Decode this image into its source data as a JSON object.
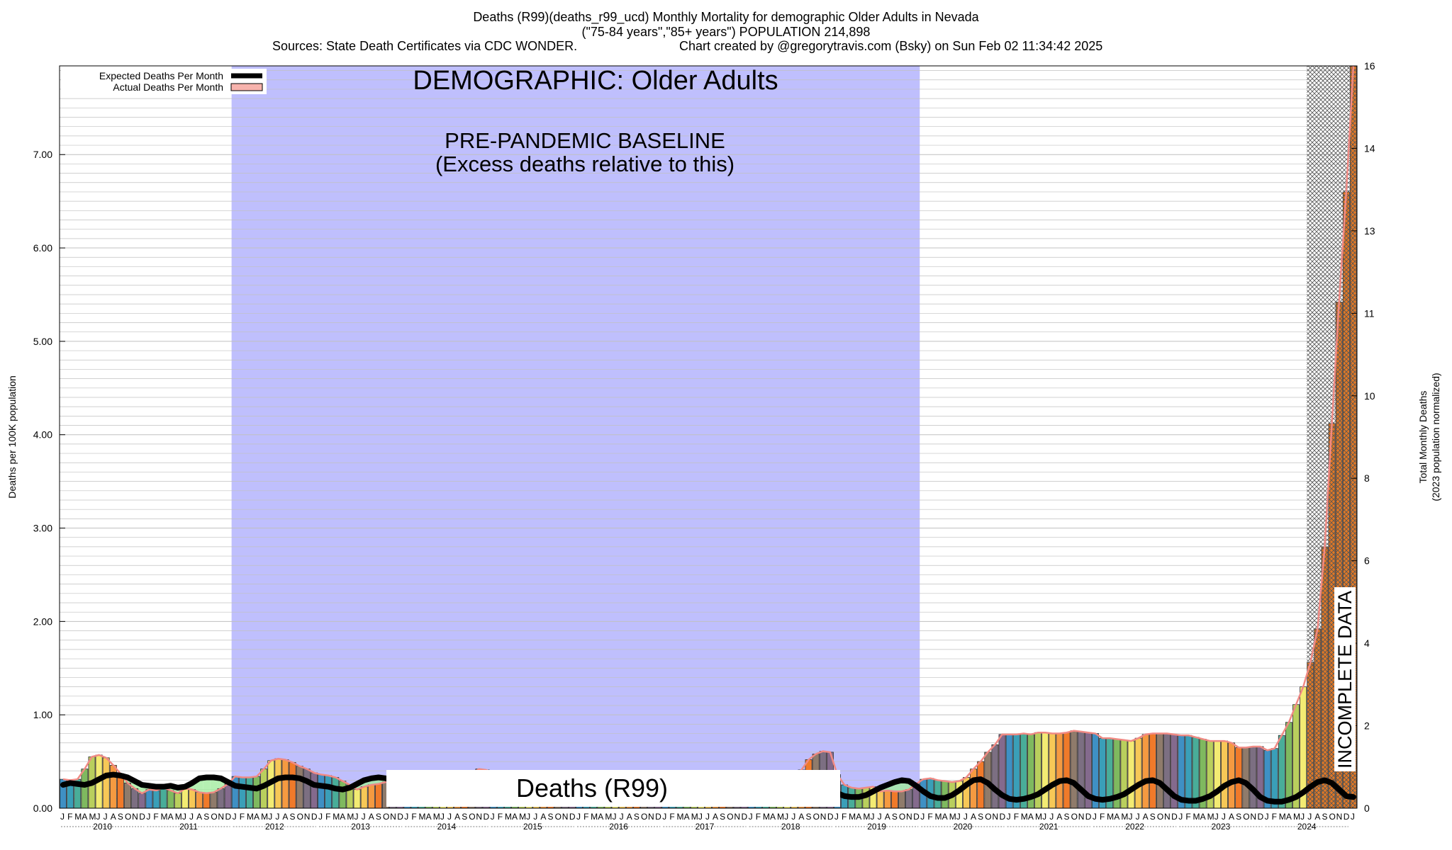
{
  "header": {
    "title_line1": "Deaths (R99)(deaths_r99_ucd) Monthly Mortality for demographic Older Adults in Nevada",
    "title_line2": "(\"75-84 years\",\"85+ years\") POPULATION 214,898",
    "sources": "Sources: State Death Certificates via CDC WONDER.",
    "credit": "Chart created by @gregorytravis.com (Bsky) on Sun Feb 02 11:34:42 2025"
  },
  "annotations": {
    "demographic": "DEMOGRAPHIC: Older Adults",
    "baseline_line1": "PRE-PANDEMIC BASELINE",
    "baseline_line2": "(Excess deaths relative to this)",
    "cause_box": "Deaths (R99)",
    "incomplete": "INCOMPLETE DATA"
  },
  "legend": {
    "expected": "Expected Deaths Per Month",
    "actual": "Actual Deaths Per Month"
  },
  "colors": {
    "baseline_band": "#bfbffd",
    "expected_line": "#000000",
    "actual_fill": "#f7b3ad",
    "grid": "#c0c0c0",
    "excess_fill": "#a3ec9f"
  },
  "chart_data": {
    "type": "bar",
    "ylabel": "Deaths per 100K population",
    "ylabel_right_line1": "Total Monthly Deaths",
    "ylabel_right_line2": "(2023 population normalized)",
    "ylim": [
      0,
      7.95
    ],
    "ylim_right": [
      0,
      16
    ],
    "y_ticks": [
      "0.00",
      "1.00",
      "2.00",
      "3.00",
      "4.00",
      "5.00",
      "6.00",
      "7.00"
    ],
    "y_ticks_right": [
      "0",
      "2",
      "4",
      "6",
      "8",
      "10",
      "11",
      "13",
      "14",
      "16"
    ],
    "years": [
      "2010",
      "2011",
      "2012",
      "2013",
      "2014",
      "2015",
      "2016",
      "2017",
      "2018",
      "2019",
      "2020",
      "2021",
      "2022",
      "2023",
      "2024"
    ],
    "month_letters": [
      "J",
      "F",
      "M",
      "A",
      "M",
      "J",
      "J",
      "A",
      "S",
      "O",
      "N",
      "D"
    ],
    "baseline_period": [
      "2012-01",
      "2019-12"
    ],
    "incomplete_from": "2024-07",
    "actual": [
      0.31,
      0.3,
      0.31,
      0.42,
      0.55,
      0.57,
      0.54,
      0.46,
      0.37,
      0.27,
      0.21,
      0.16,
      0.2,
      0.19,
      0.22,
      0.19,
      0.16,
      0.21,
      0.2,
      0.17,
      0.16,
      0.17,
      0.21,
      0.26,
      0.34,
      0.33,
      0.33,
      0.34,
      0.42,
      0.51,
      0.53,
      0.52,
      0.49,
      0.45,
      0.42,
      0.38,
      0.36,
      0.35,
      0.33,
      0.29,
      0.25,
      0.2,
      0.23,
      0.25,
      0.26,
      0.28,
      0.3,
      0.34,
      0.38,
      0.36,
      0.35,
      0.32,
      0.28,
      0.26,
      0.24,
      0.26,
      0.3,
      0.37,
      0.42,
      0.41,
      0.38,
      0.36,
      0.33,
      0.3,
      0.27,
      0.24,
      0.23,
      0.25,
      0.29,
      0.33,
      0.36,
      0.37,
      0.36,
      0.33,
      0.31,
      0.28,
      0.26,
      0.24,
      0.23,
      0.25,
      0.28,
      0.31,
      0.33,
      0.34,
      0.33,
      0.31,
      0.29,
      0.27,
      0.25,
      0.23,
      0.22,
      0.24,
      0.27,
      0.3,
      0.33,
      0.34,
      0.33,
      0.31,
      0.29,
      0.27,
      0.25,
      0.28,
      0.33,
      0.41,
      0.52,
      0.58,
      0.61,
      0.6,
      0.36,
      0.25,
      0.22,
      0.21,
      0.22,
      0.23,
      0.18,
      0.19,
      0.18,
      0.18,
      0.2,
      0.26,
      0.31,
      0.32,
      0.3,
      0.29,
      0.28,
      0.29,
      0.33,
      0.42,
      0.5,
      0.6,
      0.68,
      0.79,
      0.79,
      0.79,
      0.8,
      0.79,
      0.81,
      0.81,
      0.8,
      0.8,
      0.81,
      0.83,
      0.82,
      0.81,
      0.8,
      0.75,
      0.75,
      0.74,
      0.73,
      0.72,
      0.75,
      0.79,
      0.8,
      0.8,
      0.8,
      0.79,
      0.78,
      0.78,
      0.76,
      0.74,
      0.72,
      0.72,
      0.72,
      0.7,
      0.65,
      0.65,
      0.66,
      0.66,
      0.62,
      0.64,
      0.78,
      0.92,
      1.11,
      1.3,
      1.56,
      1.92,
      2.8,
      4.12,
      5.42,
      6.6,
      7.95
    ],
    "expected": [
      0.25,
      0.27,
      0.26,
      0.25,
      0.27,
      0.31,
      0.35,
      0.36,
      0.35,
      0.33,
      0.29,
      0.25,
      0.24,
      0.23,
      0.23,
      0.24,
      0.22,
      0.23,
      0.27,
      0.32,
      0.33,
      0.33,
      0.32,
      0.28,
      0.24,
      0.23,
      0.22,
      0.21,
      0.24,
      0.28,
      0.32,
      0.33,
      0.33,
      0.32,
      0.29,
      0.25,
      0.24,
      0.23,
      0.21,
      0.2,
      0.22,
      0.26,
      0.3,
      0.32,
      0.33,
      0.32,
      0.29,
      0.25,
      0.24,
      0.22,
      0.2,
      0.19,
      0.22,
      0.26,
      0.3,
      0.33,
      0.34,
      0.32,
      0.28,
      0.25,
      0.24,
      0.22,
      0.2,
      0.19,
      0.21,
      0.26,
      0.3,
      0.33,
      0.33,
      0.32,
      0.29,
      0.25,
      0.24,
      0.22,
      0.2,
      0.19,
      0.21,
      0.25,
      0.29,
      0.32,
      0.33,
      0.32,
      0.29,
      0.25,
      0.23,
      0.21,
      0.19,
      0.18,
      0.2,
      0.24,
      0.28,
      0.31,
      0.32,
      0.31,
      0.28,
      0.24,
      0.22,
      0.2,
      0.18,
      0.17,
      0.19,
      0.23,
      0.27,
      0.3,
      0.31,
      0.3,
      0.27,
      0.23,
      0.16,
      0.13,
      0.12,
      0.12,
      0.14,
      0.18,
      0.22,
      0.25,
      0.28,
      0.3,
      0.29,
      0.24,
      0.18,
      0.13,
      0.11,
      0.11,
      0.14,
      0.19,
      0.25,
      0.3,
      0.31,
      0.27,
      0.2,
      0.14,
      0.1,
      0.09,
      0.1,
      0.12,
      0.15,
      0.2,
      0.25,
      0.29,
      0.3,
      0.27,
      0.2,
      0.13,
      0.1,
      0.09,
      0.1,
      0.12,
      0.15,
      0.2,
      0.25,
      0.29,
      0.3,
      0.27,
      0.2,
      0.13,
      0.09,
      0.08,
      0.08,
      0.1,
      0.13,
      0.18,
      0.24,
      0.28,
      0.3,
      0.27,
      0.2,
      0.12,
      0.08,
      0.07,
      0.07,
      0.09,
      0.12,
      0.17,
      0.23,
      0.28,
      0.3,
      0.27,
      0.2,
      0.13,
      0.12
    ]
  }
}
